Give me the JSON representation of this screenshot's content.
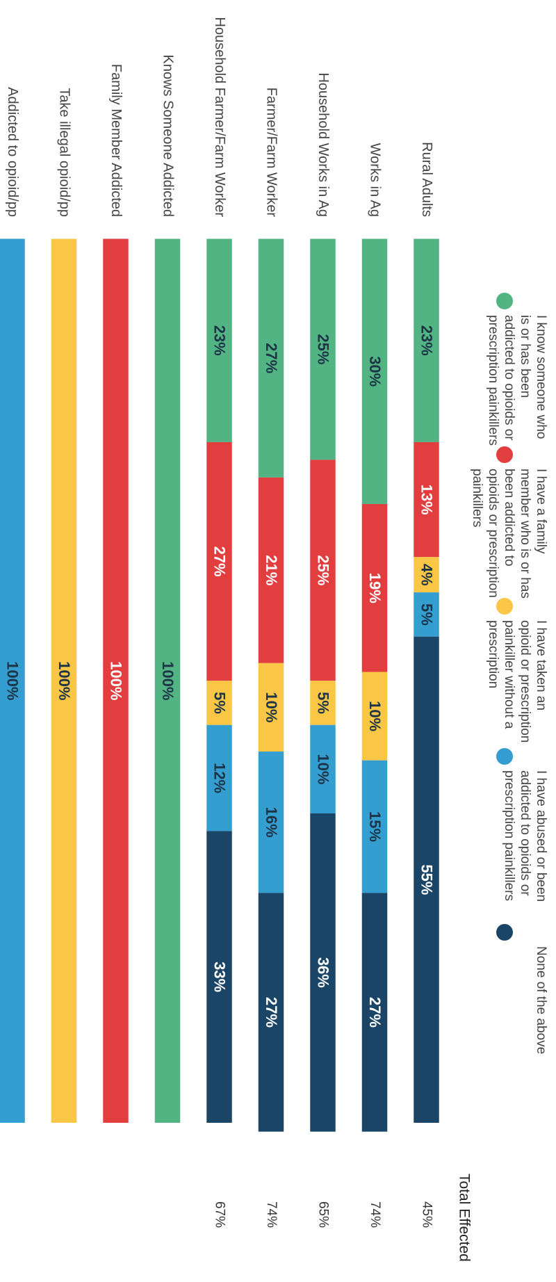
{
  "chart_data": {
    "type": "stacked_bar",
    "orientation": "horizontal",
    "rotation": 90,
    "categories": [
      "Rural Adults",
      "Works in Ag",
      "Household Works in Ag",
      "Farmer/Farm Worker",
      "Household Farmer/Farm Worker",
      "Knows Someone Addicted",
      "Family Member Addicted",
      "Take illegal opioid/pp",
      "Addicted to opioid/pp"
    ],
    "xlim": [
      0,
      100
    ],
    "series": [
      {
        "name": "I know someone who is or has been addicted to opioids or prescription painkillers",
        "color": "#52b482",
        "label_color": "#1d3447",
        "values": [
          23,
          30,
          25,
          27,
          23,
          100,
          null,
          null,
          null
        ],
        "value_labels": [
          "23%",
          "30%",
          "25%",
          "27%",
          "23%",
          "100%",
          null,
          null,
          null
        ]
      },
      {
        "name": "I have a family member who is or has been addicted to opioids or prescription painkillers",
        "color": "#e23e3f",
        "label_color": "#ffffff",
        "values": [
          13,
          19,
          25,
          21,
          27,
          null,
          100,
          null,
          null
        ],
        "value_labels": [
          "13%",
          "19%",
          "25%",
          "21%",
          "27%",
          null,
          "100%",
          null,
          null
        ]
      },
      {
        "name": "I have taken an opioid or prescription painkiller without a prescription",
        "color": "#f9c646",
        "label_color": "#1d3447",
        "values": [
          4,
          10,
          5,
          10,
          5,
          null,
          null,
          100,
          null
        ],
        "value_labels": [
          "4%",
          "10%",
          "5%",
          "10%",
          "5%",
          null,
          null,
          "100%",
          null
        ]
      },
      {
        "name": "I have abused or been addicted to opioids or prescription painkillers",
        "color": "#339ecf",
        "label_color": "#1d3447",
        "values": [
          5,
          15,
          10,
          16,
          12,
          null,
          null,
          null,
          100
        ],
        "value_labels": [
          "5%",
          "15%",
          "10%",
          "16%",
          "12%",
          null,
          null,
          null,
          "100%"
        ]
      },
      {
        "name": "None of the above",
        "color": "#1b4566",
        "label_color": "#ffffff",
        "values": [
          55,
          27,
          36,
          27,
          33,
          null,
          null,
          null,
          null
        ],
        "value_labels": [
          "55%",
          "27%",
          "36%",
          "27%",
          "33%",
          null,
          null,
          null,
          null
        ]
      }
    ],
    "total_effected": {
      "label": "Total Effected",
      "values": [
        45,
        74,
        65,
        74,
        67,
        null,
        null,
        null,
        null
      ],
      "value_labels": [
        "45%",
        "74%",
        "65%",
        "74%",
        "67%",
        null,
        null,
        null,
        null
      ]
    }
  }
}
